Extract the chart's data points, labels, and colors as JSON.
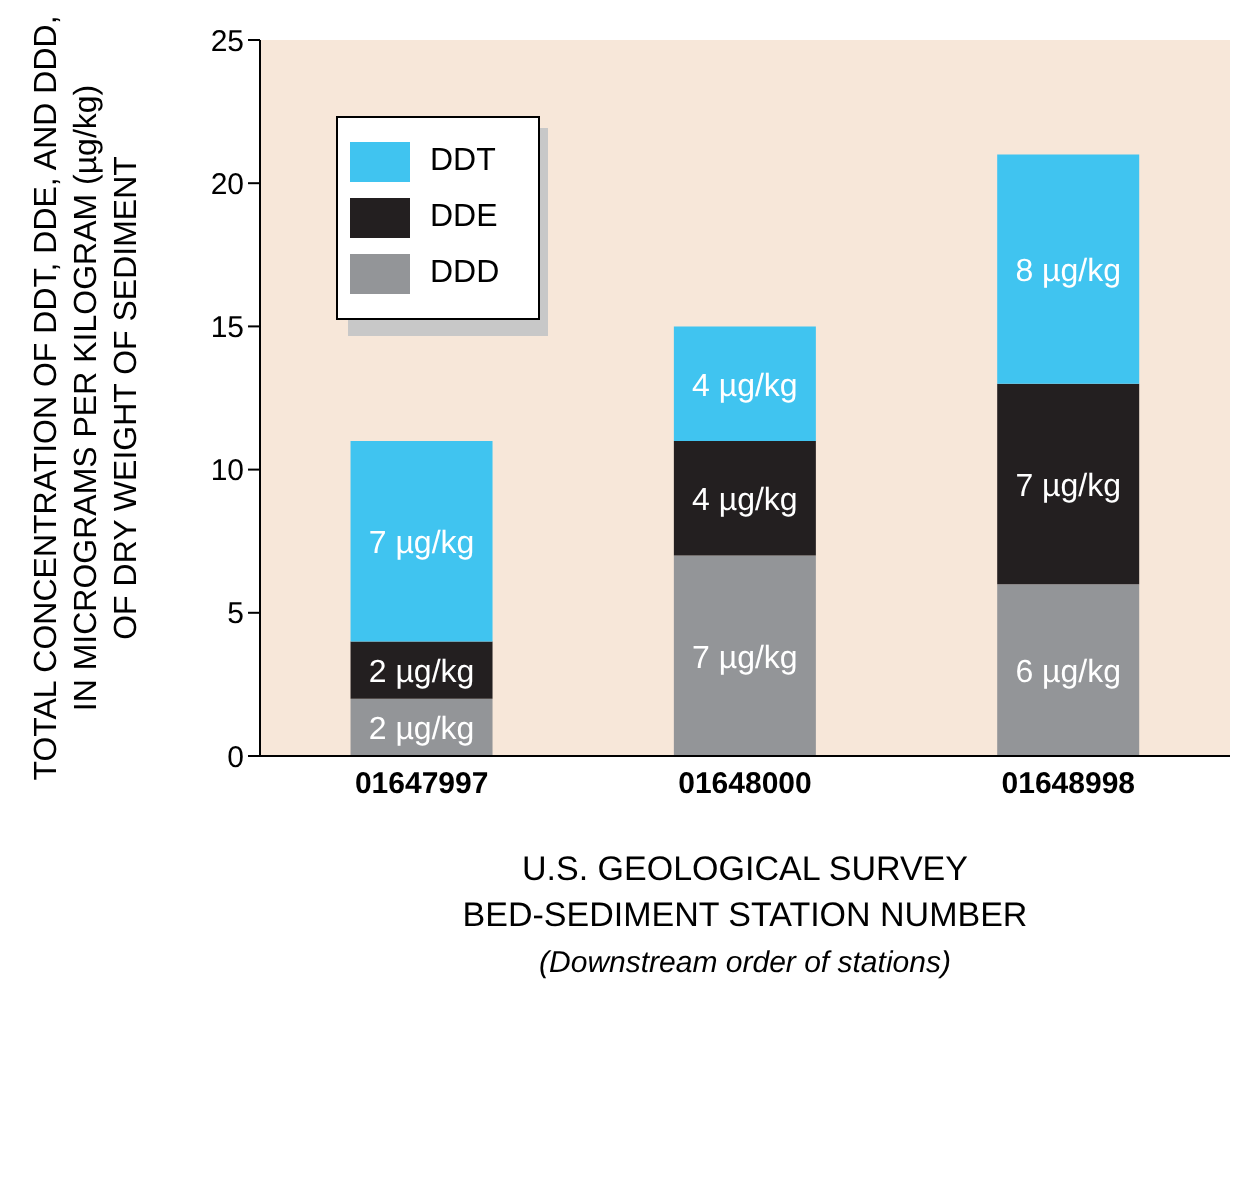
{
  "chart_data": {
    "type": "bar",
    "stacked": true,
    "categories": [
      "01647997",
      "01648000",
      "01648998"
    ],
    "series": [
      {
        "name": "DDD",
        "color": "#939598",
        "values": [
          2,
          7,
          6
        ],
        "value_labels": [
          "2 µg/kg",
          "7 µg/kg",
          "6 µg/kg"
        ]
      },
      {
        "name": "DDE",
        "color": "#231f20",
        "values": [
          2,
          4,
          7
        ],
        "value_labels": [
          "2 µg/kg",
          "4 µg/kg",
          "7 µg/kg"
        ]
      },
      {
        "name": "DDT",
        "color": "#40c4f0",
        "values": [
          7,
          4,
          8
        ],
        "value_labels": [
          "7 µg/kg",
          "4 µg/kg",
          "8 µg/kg"
        ]
      }
    ],
    "ylim": [
      0,
      25
    ],
    "yticks": [
      0,
      5,
      10,
      15,
      20,
      25
    ],
    "ylabel": "TOTAL CONCENTRATION OF DDT, DDE, AND DDD,\nIN MICROGRAMS PER KILOGRAM (µg/kg)\nOF DRY WEIGHT OF SEDIMENT",
    "xlabel": "U.S. GEOLOGICAL SURVEY\nBED-SEDIMENT STATION NUMBER",
    "annotations": [
      "(Downstream order of stations)"
    ],
    "legend": "top left"
  }
}
